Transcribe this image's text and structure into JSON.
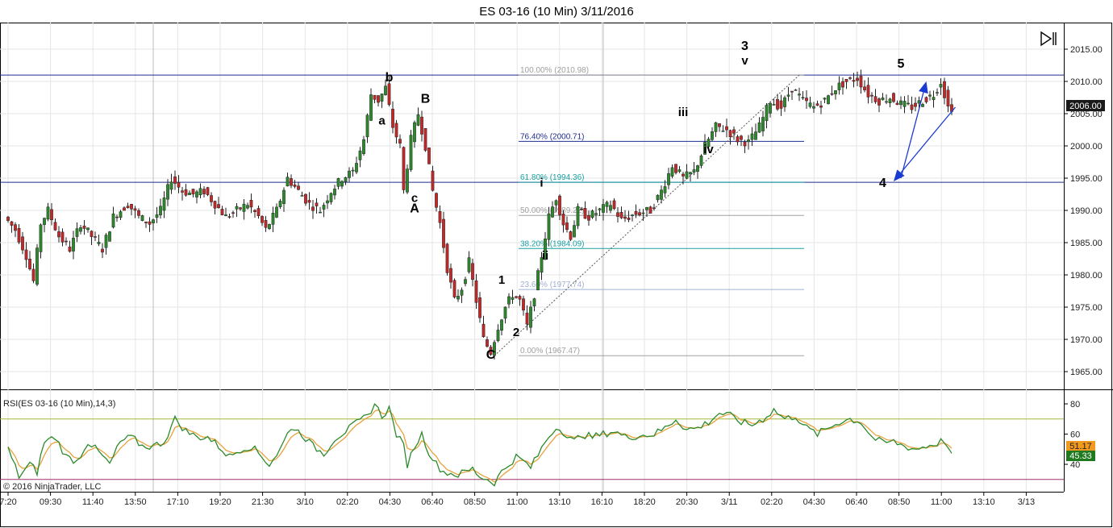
{
  "title": "ES 03-16 (10 Min)  3/11/2016",
  "copyright": "© 2016 NinjaTrader, LLC",
  "rsi_label": "RSI(ES 03-16 (10 Min),14,3)",
  "play_icon": "play-pause-icon",
  "chart_data": {
    "type": "candlestick",
    "price_axis": {
      "ticks": [
        "2015.00",
        "2010.00",
        "2005.00",
        "2000.00",
        "1995.00",
        "1990.00",
        "1985.00",
        "1980.00",
        "1975.00",
        "1970.00",
        "1965.00"
      ],
      "ylim": [
        1962.5,
        2017.5
      ]
    },
    "time_axis": {
      "ticks": [
        "7:20",
        "09:30",
        "11:40",
        "13:50",
        "17:10",
        "19:20",
        "21:30",
        "3/10",
        "02:20",
        "04:30",
        "06:40",
        "08:50",
        "11:00",
        "13:10",
        "16:10",
        "18:20",
        "20:30",
        "3/11",
        "02:20",
        "04:30",
        "06:40",
        "08:50",
        "11:00",
        "13:10",
        "3/13"
      ]
    },
    "last_price": "2006.00",
    "price_path": [
      [
        0,
        1989
      ],
      [
        3,
        1987
      ],
      [
        6,
        1983
      ],
      [
        8,
        1979
      ],
      [
        10,
        1988
      ],
      [
        12,
        1990
      ],
      [
        15,
        1986
      ],
      [
        18,
        1984
      ],
      [
        21,
        1988
      ],
      [
        24,
        1986
      ],
      [
        27,
        1984
      ],
      [
        30,
        1989
      ],
      [
        34,
        1991
      ],
      [
        37,
        1989
      ],
      [
        40,
        1988
      ],
      [
        43,
        1990
      ],
      [
        46,
        1995
      ],
      [
        49,
        1993
      ],
      [
        52,
        1992.5
      ],
      [
        55,
        1993
      ],
      [
        58,
        1991
      ],
      [
        61,
        1989
      ],
      [
        64,
        1990
      ],
      [
        67,
        1991
      ],
      [
        70,
        1989
      ],
      [
        72,
        1987
      ],
      [
        75,
        1990
      ],
      [
        78,
        1995
      ],
      [
        81,
        1993
      ],
      [
        84,
        1991
      ],
      [
        87,
        1990
      ],
      [
        90,
        1993
      ],
      [
        93,
        1995
      ],
      [
        96,
        1996
      ],
      [
        99,
        2001
      ],
      [
        101,
        2008
      ],
      [
        103,
        2007
      ],
      [
        105,
        2009
      ],
      [
        107,
        2003
      ],
      [
        109,
        2000
      ],
      [
        110,
        1993
      ],
      [
        112,
        2001
      ],
      [
        114,
        2005
      ],
      [
        116,
        2000
      ],
      [
        118,
        1993
      ],
      [
        120,
        1988
      ],
      [
        122,
        1981
      ],
      [
        124,
        1976
      ],
      [
        126,
        1978
      ],
      [
        128,
        1982
      ],
      [
        130,
        1976
      ],
      [
        132,
        1970
      ],
      [
        134,
        1968
      ],
      [
        136,
        1972
      ],
      [
        138,
        1975
      ],
      [
        140,
        1977
      ],
      [
        142,
        1976
      ],
      [
        144,
        1972
      ],
      [
        146,
        1977
      ],
      [
        148,
        1983
      ],
      [
        150,
        1989
      ],
      [
        152,
        1992
      ],
      [
        154,
        1988
      ],
      [
        156,
        1986
      ],
      [
        158,
        1990
      ],
      [
        161,
        1989
      ],
      [
        164,
        1990
      ],
      [
        167,
        1991
      ],
      [
        170,
        1988.5
      ],
      [
        174,
        1989.5
      ],
      [
        178,
        1990
      ],
      [
        181,
        1993
      ],
      [
        184,
        1997
      ],
      [
        187,
        1995
      ],
      [
        190,
        1996
      ],
      [
        193,
        2000
      ],
      [
        196,
        2003
      ],
      [
        199,
        2002.5
      ],
      [
        202,
        2001
      ],
      [
        205,
        2000.5
      ],
      [
        208,
        2003
      ],
      [
        211,
        2007
      ],
      [
        214,
        2006
      ],
      [
        217,
        2009
      ],
      [
        220,
        2007
      ],
      [
        223,
        2006
      ],
      [
        226,
        2007
      ],
      [
        229,
        2009
      ],
      [
        232,
        2010
      ],
      [
        235,
        2010.5
      ],
      [
        238,
        2008
      ],
      [
        241,
        2007
      ],
      [
        244,
        2007.5
      ],
      [
        247,
        2006.5
      ],
      [
        250,
        2006
      ],
      [
        253,
        2007
      ],
      [
        256,
        2008
      ],
      [
        258,
        2010
      ],
      [
        260,
        2006
      ]
    ],
    "rsi": {
      "ticks": [
        "80",
        "60",
        "40"
      ],
      "ylim": [
        27,
        85
      ],
      "levels": [
        70,
        30
      ],
      "values": {
        "rsi": "45.33",
        "smoothed": "51.17"
      },
      "path": [
        [
          0,
          50
        ],
        [
          3,
          32
        ],
        [
          6,
          40
        ],
        [
          8,
          35
        ],
        [
          10,
          55
        ],
        [
          13,
          58
        ],
        [
          16,
          45
        ],
        [
          19,
          42
        ],
        [
          22,
          55
        ],
        [
          25,
          48
        ],
        [
          28,
          40
        ],
        [
          31,
          55
        ],
        [
          34,
          58
        ],
        [
          37,
          52
        ],
        [
          40,
          52
        ],
        [
          43,
          55
        ],
        [
          46,
          70
        ],
        [
          49,
          62
        ],
        [
          52,
          58
        ],
        [
          55,
          58
        ],
        [
          58,
          52
        ],
        [
          61,
          45
        ],
        [
          64,
          50
        ],
        [
          67,
          52
        ],
        [
          70,
          45
        ],
        [
          72,
          40
        ],
        [
          75,
          50
        ],
        [
          78,
          65
        ],
        [
          81,
          60
        ],
        [
          84,
          52
        ],
        [
          87,
          47
        ],
        [
          90,
          57
        ],
        [
          93,
          62
        ],
        [
          96,
          67
        ],
        [
          99,
          72
        ],
        [
          101,
          80
        ],
        [
          103,
          72
        ],
        [
          105,
          77
        ],
        [
          107,
          60
        ],
        [
          109,
          52
        ],
        [
          110,
          40
        ],
        [
          112,
          52
        ],
        [
          114,
          60
        ],
        [
          116,
          48
        ],
        [
          118,
          40
        ],
        [
          120,
          35
        ],
        [
          122,
          34
        ],
        [
          124,
          33
        ],
        [
          126,
          35
        ],
        [
          128,
          37
        ],
        [
          130,
          32
        ],
        [
          132,
          30
        ],
        [
          134,
          28
        ],
        [
          136,
          35
        ],
        [
          138,
          40
        ],
        [
          140,
          45
        ],
        [
          142,
          42
        ],
        [
          144,
          38
        ],
        [
          146,
          46
        ],
        [
          148,
          55
        ],
        [
          150,
          62
        ],
        [
          152,
          65
        ],
        [
          154,
          58
        ],
        [
          156,
          55
        ],
        [
          158,
          60
        ],
        [
          161,
          58
        ],
        [
          164,
          60
        ],
        [
          167,
          62
        ],
        [
          170,
          58
        ],
        [
          174,
          59
        ],
        [
          178,
          60
        ],
        [
          181,
          64
        ],
        [
          184,
          70
        ],
        [
          187,
          63
        ],
        [
          190,
          64
        ],
        [
          193,
          68
        ],
        [
          196,
          74
        ],
        [
          199,
          72
        ],
        [
          202,
          68
        ],
        [
          205,
          66
        ],
        [
          208,
          70
        ],
        [
          211,
          76
        ],
        [
          214,
          70
        ],
        [
          217,
          72
        ],
        [
          220,
          64
        ],
        [
          223,
          60
        ],
        [
          226,
          64
        ],
        [
          229,
          68
        ],
        [
          232,
          70
        ],
        [
          235,
          68
        ],
        [
          238,
          58
        ],
        [
          241,
          54
        ],
        [
          244,
          55
        ],
        [
          247,
          52
        ],
        [
          250,
          50
        ],
        [
          253,
          52
        ],
        [
          256,
          54
        ],
        [
          258,
          56
        ],
        [
          260,
          45
        ]
      ]
    },
    "horizontal_lines": [
      2010.98,
      1994.36
    ],
    "fibonacci": {
      "levels": [
        {
          "label": "100.00% (2010.98)",
          "price": 2010.98,
          "color": "#a0a0a0"
        },
        {
          "label": "76.40% (2000.71)",
          "price": 2000.71,
          "color": "#1f2b8f"
        },
        {
          "label": "61.80% (1994.36)",
          "price": 1994.36,
          "color": "#1aa0a0"
        },
        {
          "label": "50.00% (1989.22)",
          "price": 1989.22,
          "color": "#a0a0a0"
        },
        {
          "label": "38.20% (1984.09)",
          "price": 1984.09,
          "color": "#1aa0a0"
        },
        {
          "label": "23.60% (1977.74)",
          "price": 1977.74,
          "color": "#a0b0d0"
        },
        {
          "label": "0.00% (1967.47)",
          "price": 1967.47,
          "color": "#a0a0a0"
        }
      ]
    },
    "wave_labels": [
      {
        "text": "b",
        "bar": 105,
        "price": 2010.0,
        "size": 16
      },
      {
        "text": "a",
        "bar": 103,
        "price": 2003.3,
        "size": 15
      },
      {
        "text": "B",
        "bar": 115,
        "price": 2006.7,
        "size": 16
      },
      {
        "text": "c",
        "bar": 112,
        "price": 1991.3,
        "size": 15
      },
      {
        "text": "A",
        "bar": 112,
        "price": 1989.7,
        "size": 16
      },
      {
        "text": "1",
        "bar": 136,
        "price": 1978.6,
        "size": 15
      },
      {
        "text": "2",
        "bar": 140,
        "price": 1970.5,
        "size": 15
      },
      {
        "text": "C",
        "bar": 133,
        "price": 1967.0,
        "size": 16
      },
      {
        "text": "i",
        "bar": 147,
        "price": 1993.7,
        "size": 15
      },
      {
        "text": "ii",
        "bar": 148,
        "price": 1982.4,
        "size": 15
      },
      {
        "text": "iii",
        "bar": 186,
        "price": 2004.6,
        "size": 15
      },
      {
        "text": "iv",
        "bar": 193,
        "price": 1998.9,
        "size": 15
      },
      {
        "text": "3",
        "bar": 203,
        "price": 2014.9,
        "size": 16
      },
      {
        "text": "v",
        "bar": 203,
        "price": 2012.6,
        "size": 15
      },
      {
        "text": "5",
        "bar": 246,
        "price": 2012.1,
        "size": 16
      },
      {
        "text": "4",
        "bar": 241,
        "price": 1993.6,
        "size": 16
      }
    ],
    "projection_arrows": [
      {
        "from": [
          261,
          2006.0
        ],
        "to": [
          244,
          1994.5
        ]
      },
      {
        "from": [
          246,
          1995.0
        ],
        "to": [
          253,
          2010.0
        ]
      }
    ],
    "colors": {
      "up_candle": "#2c8a2c",
      "down_candle": "#c42828",
      "rsi_line": "#2c8a2c",
      "rsi_smooth": "#e6a23c",
      "arrow": "#1a3bd0",
      "hline": "#1f2b8f"
    }
  }
}
